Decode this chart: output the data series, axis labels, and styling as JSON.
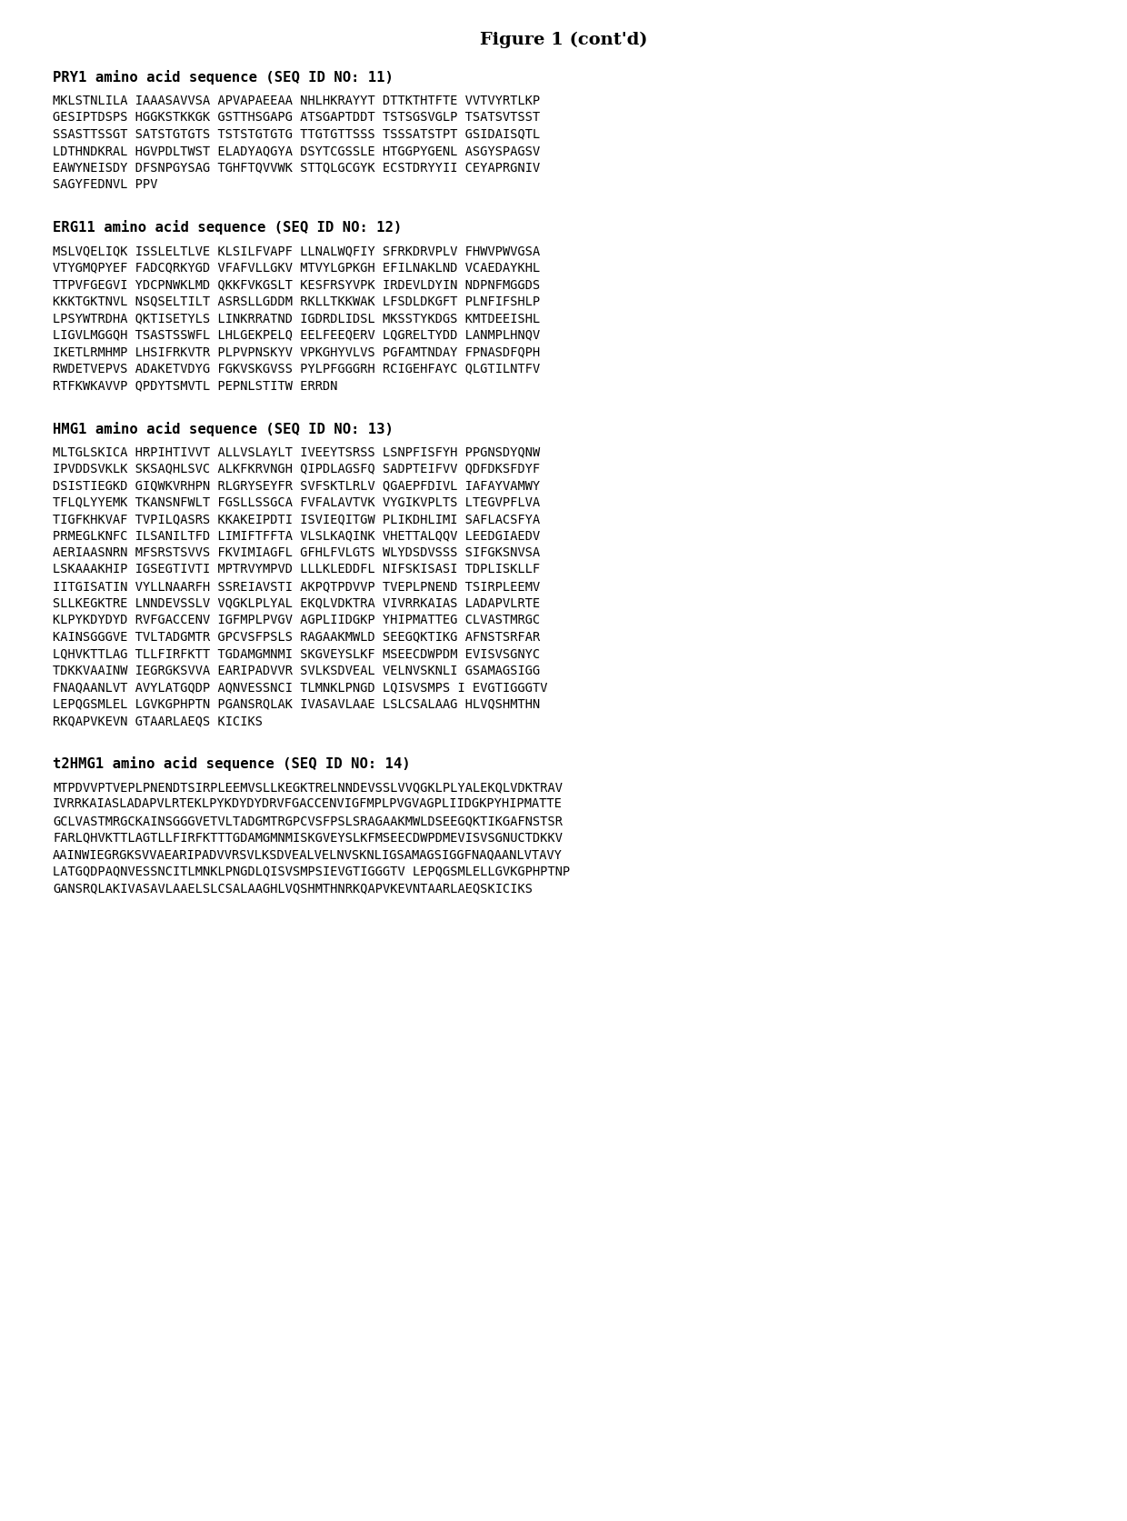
{
  "title": "Figure 1 (cont’d)",
  "background_color": "#ffffff",
  "sections": [
    {
      "header": "PRY1 amino acid sequence (SEQ ID NO: 11)",
      "lines": [
        "MKLSTNLILA IAAASAVVSA APVAPAEEAA NHLHKRAYYT DTTKTHTFTE VVTVYRTLKP",
        "GESIPTDSPS HGGKSTKKGK GSTTHSGAPG ATSGAPTDDT TSTSGSVGLP TSATSVTSST",
        "SSASTTSSGT SATSTGTGTS TSTSTGTGTG TTGTGTTSSS TSSSATSTPT GSIDAISQTL",
        "LDTHNDKRAL HGVPDLTWST ELADYAQGYA DSYTCGSSLE HTGGPYGENL ASGYSPAGSV",
        "EAWYNEISDY DFSNPGYSAG TGHFTQVVWK STTQLGCGYK ECSTDRYYII CEYAPRGNIV",
        "SAGYFEDNVL PPV"
      ]
    },
    {
      "header": "ERG11 amino acid sequence (SEQ ID NO: 12)",
      "lines": [
        "MSLVQELIQK ISSLELTLVE KLSILFVAPF LLNALWQFIY SFRKDRVPLV FHWVPWVGSA",
        "VTYGMQPYEF FADCQRKYGD VFAFVLLGKV MTVYLGPKGH EFILNAKLND VCAEDAYKHL",
        "TTPVFGEGVI YDCPNWKLMD QKKFVKGSLT KESFRSYVPK IRDEVLDYIN NDPNFMGGDS",
        "KKKTGKTNVL NSQSELTILT ASRSLLGDDM RKLLTKKWAK LFSDLDKGFT PLNFIFSHLP",
        "LPSYWTRDHA QKTISETYLS LINKRRATND IGDRDLIDSL MKSSTYKDGS KMTDEEISHL",
        "LIGVLMGGQH TSASTSSWFL LHLGEKPELQ EELFEEQERV LQGRELTYDD LANMPLHNQV",
        "IKETLRMHMP LHSIFRKVTR PLPVPNSKYV VPKGHYVLVS PGFAMTNDAY FPNASDFQPH",
        "RWDETVEPVS ADAKETVDYG FGKVSKGVSS PYLPFGGGRH RCIGEHFAYC QLGTILNTFV",
        "RTFKWKAVVP QPDYTSMVTL PEPNLSTITW ERRDN"
      ]
    },
    {
      "header": "HMG1 amino acid sequence (SEQ ID NO: 13)",
      "lines": [
        "MLTGLSKICA HRPIHTIVVT ALLVSLAYLT IVEEYTSRSS LSNPFISFYH PPGNSDYQNW",
        "IPVDDSVKLK SKSAQHLSVC ALKFKRVNGH QIPDLAGSFQ SADPTEIFVV QDFDKSFDYF",
        "DSISTIEGKD GIQWKVRHPN RLGRYSEYFR SVFSKTLRLV QGAEPFDIVL IAFAYVAMWY",
        "TFLQLYYEMK TKANSNFWLT FGSLLSSGCA FVFALAVTVK VYGIKVPLTS LTEGVPFLVA",
        "TIGFKHKVAF TVPILQASRS KKAKEIPDTI ISVIEQITGW PLIKDHLIMI SAFLACSFYA",
        "PRMEGLKNFC ILSANILTFD LIMIFTFFTA VLSLKAQINK VHETTALQQV LEEDGIAEDV",
        "AERIAASNRN MFSRSTSVVS FKVIMIAGFL GFHLFVLGTS WLYDSDVSSS SIFGKSNVSA",
        "LSKAAAKHIP IGSEGTIVTI MPTRVYMPVD LLLKLEDDFL NIFSKISASI TDPLISKLLF",
        "IITGISATIN VYLLNAARFH SSREIAVSTI AKPQTPDVVP TVEPLPNEND TSIRPLEEMV",
        "SLLKEGKTRE LNNDEVSSLV VQGKLPLYAL EKQLVDKTRA VIVRRKAIAS LADAPVLRTE",
        "KLPYKDYDYD RVFGACCENV IGFMPLPVGV AGPLIIDGKP YHIPMATTEG CLVASTMRGC",
        "KAINSGGGVE TVLTADGMTR GPCVSFPSLS RAGAAKMWLD SEEGQKTIKG AFNSTSRFAR",
        "LQHVKTTLAG TLLFIRFKTT TGDAMGMNMI SKGVEYSLKF MSEECDWPDM EVISVSGNYC",
        "TDKKVAAINW IEGRGKSVVA EARIPADVVR SVLKSDVEAL VELNVSKNLI GSAMAGSIGG",
        "FNAQAANLVT AVYLATGQDP AQNVESSNCI TLMNKLPNGD LQISVSMPS I EVGTIGGGTV",
        "LEPQGSMLEL LGVKGPHPTN PGANSRQLAK IVASAVLAAE LSLCSALAAG HLVQSHMTHN",
        "RKQAPVKEVN GTAARLAEQS KICIKS"
      ]
    },
    {
      "header": "t2HMG1 amino acid sequence (SEQ ID NO: 14)",
      "lines": [
        "MTPDVVPTVEPLPNENDTSIRPLEEMVSLLKEGKTRELNNDEVSSLVVQGKLPLYALEKQLVDKTRAV",
        "IVRRKAIASLADAPVLRTEKLPYKDYDYDRVFGACCENVIGFMPLPVGVAGPLIIDGKPYHIPMATTE",
        "GCLVASTMRGCKAINSGGGVETVLTADGMTRGPCVSFPSLSRAGAAKMWLDSEEGQKTIKGAFNSTSR",
        "FARLQHVKTTLAGTLLFIRFKTTTGDAMGMNMISKGVEYSLKFMSEECDWPDMEVISVSGNUCTDKKV",
        "AAINWIEGRGKSVVAEARIPADVVRSVLKSDVEALVELNVSKNLIGSAMAGSIGGFNAQAANLVTAVY",
        "LATGQDPAQNVESSNCITLMNKLPNGDLQISVSMPSIEVGTIGGGTV LEPQGSMLELLGVKGPHPTNP",
        "GANSRQLAKIVASAVLAAELSLCSALAAGHLVQSHMTHNRKQAPVKEVNTAARLAEQSKICIKS"
      ]
    }
  ]
}
